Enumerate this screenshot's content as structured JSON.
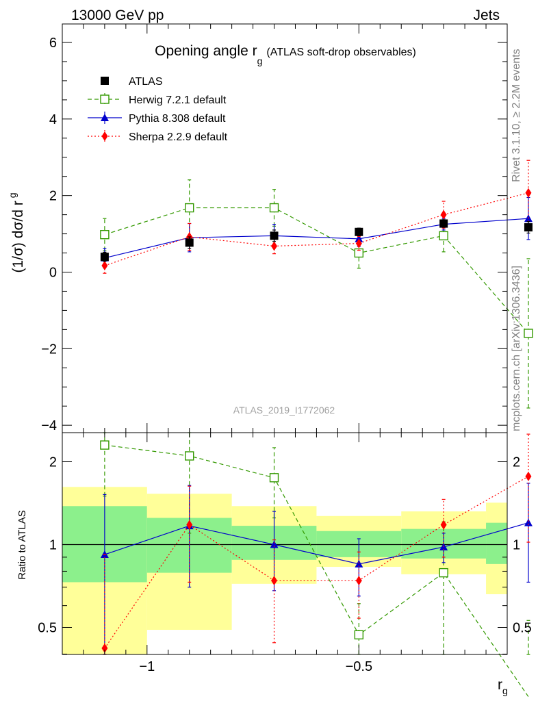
{
  "header": {
    "left": "13000 GeV pp",
    "right": "Jets"
  },
  "side_labels": {
    "rivet": "Rivet 3.1.10, ≥ 2.2M events",
    "mcplots": "mcplots.cern.ch [arXiv:1306.3436]"
  },
  "watermark": "ATLAS_2019_I1772062",
  "colors": {
    "atlas": "#000000",
    "herwig": "#339900",
    "pythia": "#0000cc",
    "sherpa": "#ff0000",
    "band_inner": "#8cf08c",
    "band_outer": "#ffff99"
  },
  "chart_data": [
    {
      "type": "line",
      "title_main": "Opening angle r",
      "title_sub": "g",
      "title_note": "(ATLAS soft-drop observables)",
      "ylabel_main": "(1/σ) dσ/d r",
      "ylabel_sub": "g",
      "xlim": [
        -1.2,
        -0.15
      ],
      "ylim": [
        -4,
        6.5
      ],
      "y_ticks": [
        -4,
        -2,
        0,
        2,
        4,
        6
      ],
      "y_tick_labels": [
        "−4",
        "−2",
        "0",
        "2",
        "4",
        "6"
      ],
      "grid": false,
      "legend_position": "top-left",
      "x": [
        -1.1,
        -0.9,
        -0.7,
        -0.5,
        -0.3,
        -0.1
      ],
      "bin_edges": [
        -1.2,
        -1.0,
        -0.8,
        -0.6,
        -0.4,
        -0.2,
        -0.15
      ],
      "series": [
        {
          "name": "ATLAS",
          "style": "data",
          "values": [
            0.4,
            0.77,
            0.95,
            1.05,
            1.27,
            1.17
          ],
          "err_low": [
            0.12,
            0.15,
            0.15,
            0.1,
            0.1,
            0.15
          ],
          "err_high": [
            0.12,
            0.15,
            0.15,
            0.1,
            0.1,
            0.15
          ]
        },
        {
          "name": "Herwig 7.2.1 default",
          "style": "herwig",
          "values": [
            0.98,
            1.68,
            1.68,
            0.5,
            0.95,
            -1.6
          ],
          "err_low": [
            0.42,
            0.73,
            0.48,
            0.4,
            0.42,
            1.95
          ],
          "err_high": [
            0.42,
            0.73,
            0.48,
            0.4,
            0.42,
            1.95
          ]
        },
        {
          "name": "Pythia 8.308 default",
          "style": "pythia",
          "values": [
            0.37,
            0.9,
            0.95,
            0.87,
            1.25,
            1.4
          ],
          "err_low": [
            0.25,
            0.37,
            0.3,
            0.2,
            0.15,
            0.55
          ],
          "err_high": [
            0.25,
            0.37,
            0.3,
            0.2,
            0.15,
            0.55
          ]
        },
        {
          "name": "Sherpa 2.2.9 default",
          "style": "sherpa",
          "values": [
            0.17,
            0.92,
            0.68,
            0.75,
            1.5,
            2.07
          ],
          "err_low": [
            0.2,
            0.35,
            0.2,
            0.18,
            0.35,
            0.85
          ],
          "err_high": [
            0.2,
            0.35,
            0.2,
            0.18,
            0.35,
            0.85
          ]
        }
      ]
    },
    {
      "type": "line",
      "ylabel": "Ratio to ATLAS",
      "xlabel_main": "r",
      "xlabel_sub": "g",
      "xlim": [
        -1.2,
        -0.15
      ],
      "ylim": [
        0.35,
        2.3
      ],
      "y_scale": "log",
      "y_ticks": [
        0.5,
        1,
        2
      ],
      "y_tick_labels": [
        "0.5",
        "1",
        "2"
      ],
      "x_ticks": [
        -1.0,
        -0.5
      ],
      "x_tick_labels": [
        "−1",
        "−0.5"
      ],
      "reference_line": 1,
      "bands": {
        "bin_edges": [
          -1.2,
          -1.0,
          -0.8,
          -0.6,
          -0.4,
          -0.2,
          -0.15
        ],
        "inner_low": [
          0.73,
          0.79,
          0.88,
          0.9,
          0.89,
          0.85
        ],
        "inner_high": [
          1.38,
          1.25,
          1.17,
          1.12,
          1.14,
          1.2
        ],
        "outer_low": [
          0.35,
          0.49,
          0.72,
          0.83,
          0.78,
          0.66
        ],
        "outer_high": [
          1.62,
          1.53,
          1.38,
          1.27,
          1.32,
          1.42
        ]
      },
      "x": [
        -1.1,
        -0.9,
        -0.7,
        -0.5,
        -0.3,
        -0.1
      ],
      "series": [
        {
          "name": "Herwig 7.2.1 default",
          "style": "herwig",
          "values": [
            2.3,
            2.1,
            1.75,
            0.47,
            0.79,
            0.28
          ],
          "err_low": [
            0.8,
            1.0,
            0.5,
            0.14,
            0.42,
            0.25
          ],
          "err_high": [
            0.8,
            1.0,
            0.5,
            0.14,
            0.42,
            0.25
          ]
        },
        {
          "name": "Pythia 8.308 default",
          "style": "pythia",
          "values": [
            0.92,
            1.17,
            1.0,
            0.85,
            0.98,
            1.2
          ],
          "err_low": [
            0.6,
            0.47,
            0.32,
            0.2,
            0.12,
            0.47
          ],
          "err_high": [
            0.6,
            0.47,
            0.32,
            0.2,
            0.12,
            0.47
          ]
        },
        {
          "name": "Sherpa 2.2.9 default",
          "style": "sherpa",
          "values": [
            0.42,
            1.18,
            0.74,
            0.74,
            1.18,
            1.77
          ],
          "err_low": [
            0.5,
            0.45,
            0.3,
            0.2,
            0.28,
            0.75
          ],
          "err_high": [
            0.5,
            0.45,
            0.3,
            0.2,
            0.28,
            0.75
          ]
        }
      ]
    }
  ]
}
